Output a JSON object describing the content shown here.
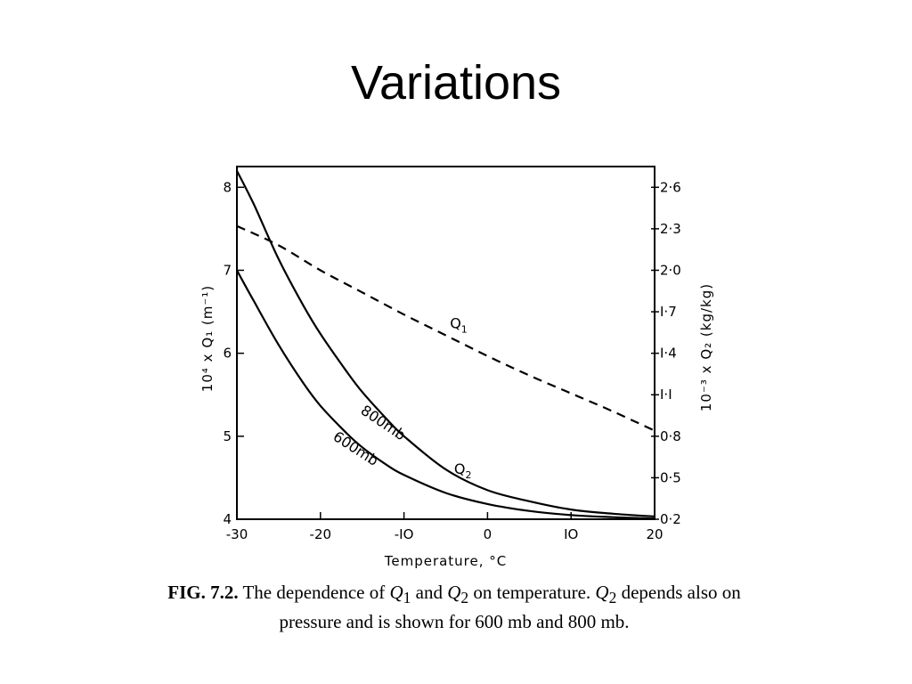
{
  "slide": {
    "title": "Variations"
  },
  "caption": {
    "figure_label": "FIG. 7.2.",
    "text_1": "The dependence of",
    "q1_var": "Q",
    "q1_sub": "1",
    "text_and": "and",
    "q2_var": "Q",
    "q2_sub": "2",
    "text_2": "on temperature.",
    "q2b_var": "Q",
    "q2b_sub": "2",
    "text_3": "depends also on",
    "line2": "pressure and is shown for 600 mb and 800 mb."
  },
  "chart_data": {
    "type": "line",
    "xlabel": "Temperature,  °C",
    "ylabel_left": "10⁴ x Q₁ (m⁻¹)",
    "ylabel_right": "10⁻³ x Q₂ (kg/kg)",
    "xlim": [
      -30,
      20
    ],
    "ylim_left": [
      4,
      8.25
    ],
    "ylim_right": [
      0.2,
      2.75
    ],
    "x_ticks": [
      -30,
      -20,
      -10,
      0,
      10,
      20
    ],
    "x_tick_labels": [
      "-30",
      "-20",
      "-IO",
      "0",
      "IO",
      "20"
    ],
    "y_left_ticks": [
      4,
      5,
      6,
      7,
      8
    ],
    "y_left_tick_labels": [
      "4",
      "5",
      "6",
      "7",
      "8"
    ],
    "y_right_ticks": [
      0.2,
      0.5,
      0.8,
      1.1,
      1.4,
      1.7,
      2.0,
      2.3,
      2.6
    ],
    "y_right_tick_labels": [
      "0·2",
      "0·5",
      "0·8",
      "I·I",
      "I·4",
      "I·7",
      "2·0",
      "2·3",
      "2·6"
    ],
    "grid": false,
    "series": [
      {
        "name": "Q1",
        "axis": "right",
        "style": "dashed",
        "x": [
          -30,
          -25,
          -20,
          -15,
          -10,
          -5,
          0,
          5,
          10,
          15,
          20
        ],
        "y": [
          2.32,
          2.18,
          2.0,
          1.84,
          1.68,
          1.53,
          1.38,
          1.24,
          1.11,
          0.98,
          0.84
        ]
      },
      {
        "name": "800mb",
        "axis": "right",
        "style": "solid",
        "x": [
          -30,
          -28,
          -25,
          -22,
          -20,
          -17,
          -15,
          -12,
          -10,
          -5,
          0,
          5,
          10,
          15,
          20
        ],
        "y": [
          2.72,
          2.48,
          2.08,
          1.74,
          1.54,
          1.28,
          1.12,
          0.92,
          0.8,
          0.56,
          0.41,
          0.33,
          0.27,
          0.24,
          0.22
        ]
      },
      {
        "name": "600mb",
        "axis": "right",
        "style": "solid",
        "x": [
          -30,
          -28,
          -25,
          -22,
          -20,
          -17,
          -15,
          -12,
          -10,
          -5,
          0,
          5,
          10,
          15,
          20
        ],
        "y": [
          2.0,
          1.78,
          1.46,
          1.18,
          1.02,
          0.83,
          0.72,
          0.59,
          0.52,
          0.39,
          0.31,
          0.26,
          0.23,
          0.215,
          0.205
        ]
      }
    ],
    "curve_labels": {
      "q1": "Q",
      "q1_sub": "1",
      "q2": "Q",
      "q2_sub": "2",
      "label_800": "800mb",
      "label_600": "600mb"
    }
  }
}
